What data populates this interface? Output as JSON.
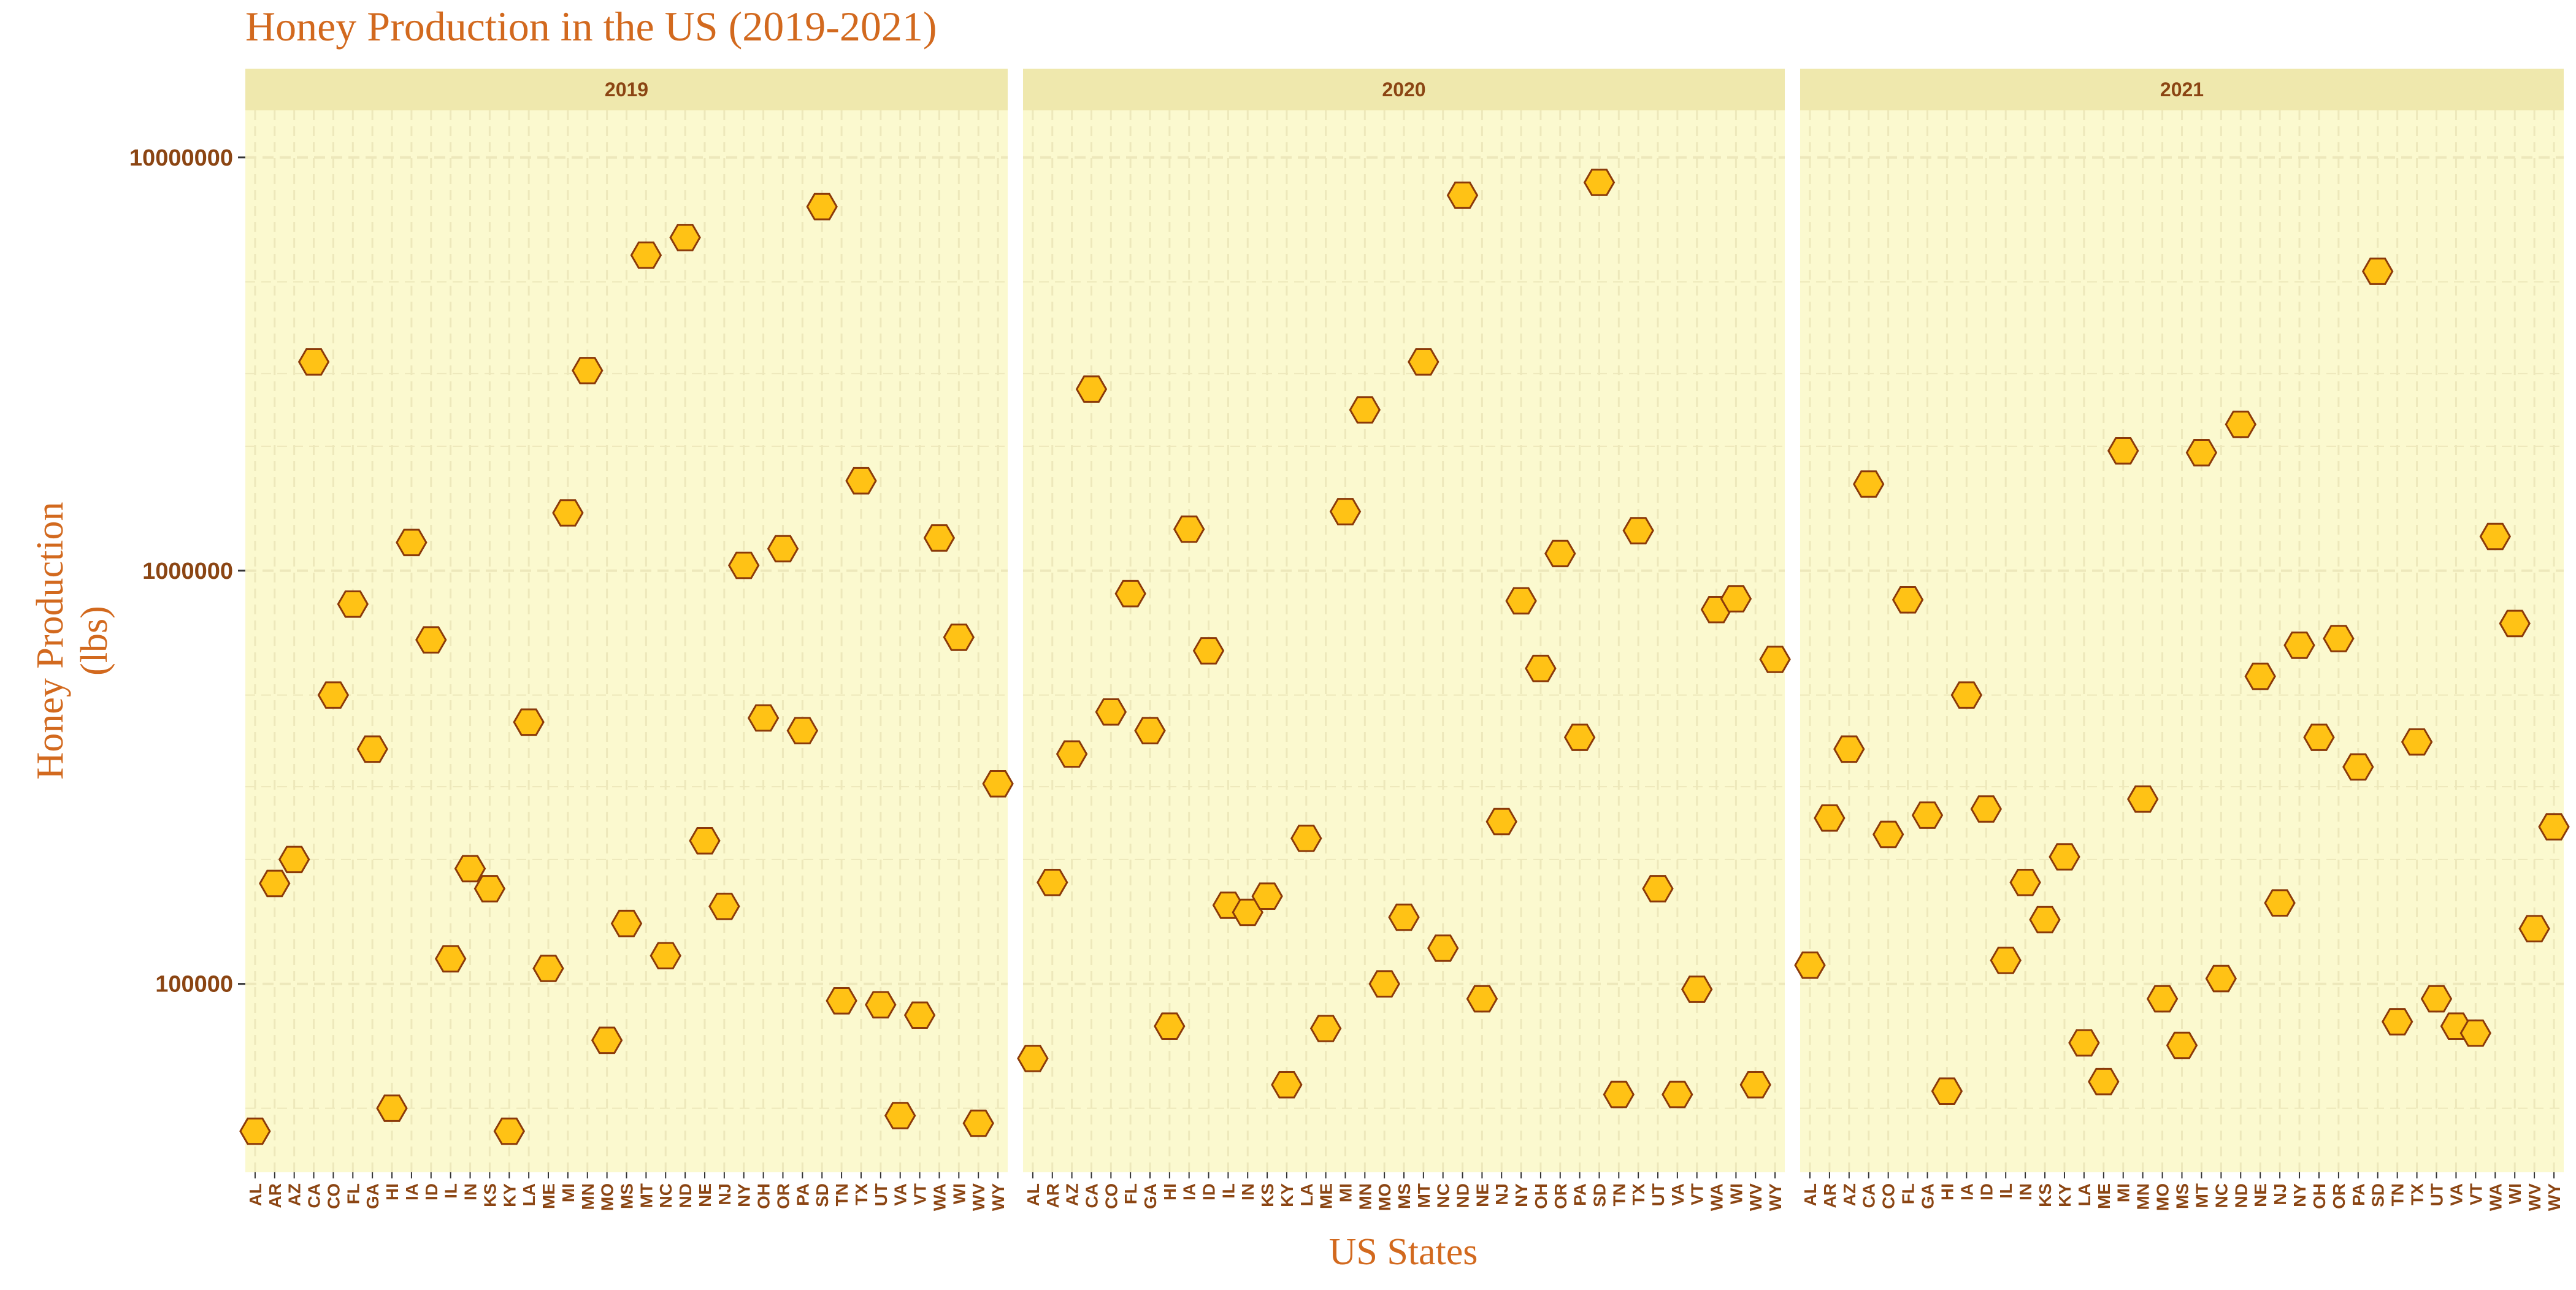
{
  "chart_data": {
    "type": "scatter",
    "title": "Honey Production in the US (2019-2021)",
    "xlabel": "US States",
    "ylabel": "Honey Production\n(lbs)",
    "y_scale": "log10",
    "ylim": [
      35000,
      13000000
    ],
    "y_ticks": [
      100000,
      1000000,
      10000000
    ],
    "y_tick_labels": [
      "100000",
      "1000000",
      "10000000"
    ],
    "grid": true,
    "marker": "hexagon",
    "colors": {
      "title": "#d2691e",
      "axis_text": "#8b4513",
      "panel_bg": "#fbf9cf",
      "strip_bg": "#efe8ad",
      "grid": "#ede8bb",
      "marker_fill": "#ffc215",
      "marker_stroke": "#8b3a0a"
    },
    "panels": [
      {
        "label": "2019",
        "states": [
          "AL",
          "AR",
          "AZ",
          "CA",
          "CO",
          "FL",
          "GA",
          "HI",
          "IA",
          "ID",
          "IL",
          "IN",
          "KS",
          "KY",
          "LA",
          "ME",
          "MI",
          "MN",
          "MO",
          "MS",
          "MT",
          "NC",
          "ND",
          "NE",
          "NJ",
          "NY",
          "OH",
          "OR",
          "PA",
          "SD",
          "TN",
          "TX",
          "UT",
          "VA",
          "VT",
          "WA",
          "WI",
          "WV",
          "WY"
        ],
        "values": [
          44000,
          175000,
          200000,
          3200000,
          500000,
          830000,
          370000,
          50000,
          1170000,
          680000,
          115000,
          190000,
          170000,
          44000,
          430000,
          109000,
          1380000,
          3050000,
          73000,
          140000,
          5800000,
          117000,
          6400000,
          222000,
          154000,
          1030000,
          440000,
          1130000,
          410000,
          7600000,
          91000,
          1650000,
          89000,
          48000,
          84000,
          1200000,
          690000,
          46000,
          305000
        ]
      },
      {
        "label": "2020",
        "states": [
          "AL",
          "AR",
          "AZ",
          "CA",
          "CO",
          "FL",
          "GA",
          "HI",
          "IA",
          "ID",
          "IL",
          "IN",
          "KS",
          "KY",
          "LA",
          "ME",
          "MI",
          "MN",
          "MO",
          "MS",
          "MT",
          "NC",
          "ND",
          "NE",
          "NJ",
          "NY",
          "OH",
          "OR",
          "PA",
          "SD",
          "TN",
          "TX",
          "UT",
          "VA",
          "VT",
          "WA",
          "WI",
          "WV",
          "WY"
        ],
        "values": [
          66000,
          176000,
          360000,
          2750000,
          455000,
          880000,
          410000,
          79000,
          1260000,
          640000,
          155000,
          149000,
          163000,
          57000,
          225000,
          78000,
          1390000,
          2450000,
          100000,
          145000,
          3200000,
          122000,
          8100000,
          92000,
          247000,
          845000,
          580000,
          1100000,
          395000,
          8700000,
          54000,
          1250000,
          170000,
          54000,
          97000,
          805000,
          855000,
          57000,
          610000
        ]
      },
      {
        "label": "2021",
        "states": [
          "AL",
          "AR",
          "AZ",
          "CA",
          "CO",
          "FL",
          "GA",
          "HI",
          "IA",
          "ID",
          "IL",
          "IN",
          "KS",
          "KY",
          "LA",
          "ME",
          "MI",
          "MN",
          "MO",
          "MS",
          "MT",
          "NC",
          "ND",
          "NE",
          "NJ",
          "NY",
          "OH",
          "OR",
          "PA",
          "SD",
          "TN",
          "TX",
          "UT",
          "VA",
          "VT",
          "WA",
          "WI",
          "WV",
          "WY"
        ],
        "values": [
          111000,
          252000,
          370000,
          1620000,
          230000,
          850000,
          256000,
          55000,
          500000,
          265000,
          114000,
          176000,
          143000,
          203000,
          72000,
          58000,
          1950000,
          280000,
          92000,
          71000,
          1930000,
          103000,
          2260000,
          555000,
          157000,
          660000,
          395000,
          685000,
          335000,
          5300000,
          81000,
          385000,
          92000,
          79000,
          76000,
          1210000,
          745000,
          136000,
          240000
        ]
      }
    ]
  }
}
